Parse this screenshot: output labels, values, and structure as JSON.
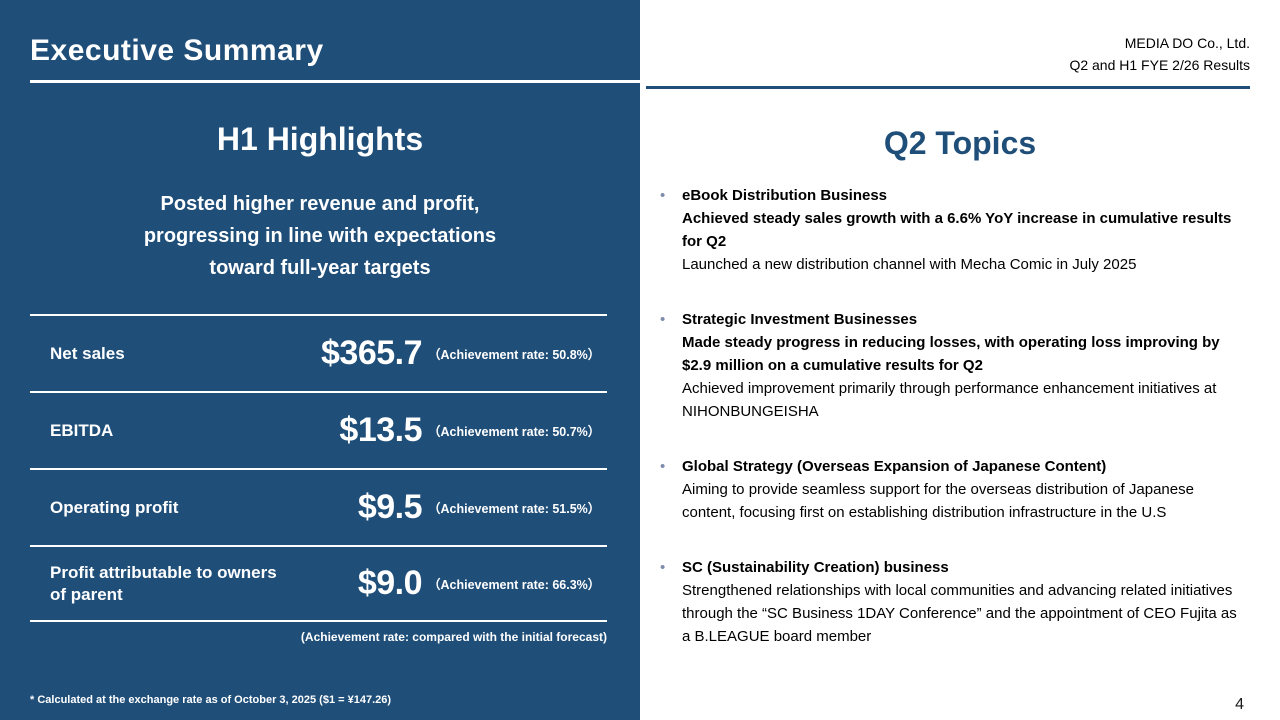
{
  "colors": {
    "panel_blue": "#1f4e79",
    "accent_blue": "#1f4e79",
    "bullet_gray_blue": "#7d8caa",
    "left_text": "#ffffff",
    "right_text": "#000000"
  },
  "left": {
    "title": "Executive Summary",
    "heading": "H1 Highlights",
    "summary_lines": [
      "Posted higher revenue and profit,",
      "progressing in line with expectations",
      "toward full-year targets"
    ],
    "metrics": [
      {
        "label": "Net sales",
        "value": "$365.7",
        "rate": "（Achievement rate: 50.8%）"
      },
      {
        "label": "EBITDA",
        "value": "$13.5",
        "rate": "（Achievement rate: 50.7%）"
      },
      {
        "label": "Operating profit",
        "value": "$9.5",
        "rate": "（Achievement rate: 51.5%）"
      },
      {
        "label": "Profit attributable to owners of parent",
        "value": "$9.0",
        "rate": "（Achievement rate: 66.3%）"
      }
    ],
    "rate_note": "(Achievement rate: compared with the initial forecast)",
    "footnote": "* Calculated at the exchange rate as of October 3, 2025 ($1 = ¥147.26)"
  },
  "right": {
    "header": {
      "company": "MEDIA DO Co., Ltd.",
      "subtitle": "Q2 and H1 FYE 2/26 Results"
    },
    "heading": "Q2 Topics",
    "topics": [
      {
        "title": "eBook Distribution Business",
        "bold_text": "Achieved steady sales growth with a 6.6% YoY increase in cumulative results for Q2",
        "text": "Launched a new distribution channel with Mecha Comic in July 2025"
      },
      {
        "title": "Strategic Investment Businesses",
        "bold_text": "Made steady progress in reducing losses, with operating loss improving by $2.9 million on a cumulative results for Q2",
        "text": "Achieved improvement primarily through performance enhancement initiatives at NIHONBUNGEISHA"
      },
      {
        "title": "Global Strategy (Overseas Expansion of Japanese Content)",
        "text": "Aiming to provide seamless support for the overseas distribution of Japanese content, focusing first on establishing distribution infrastructure in the U.S"
      },
      {
        "title": "SC (Sustainability Creation) business",
        "text": "Strengthened relationships with local communities and advancing related initiatives through the “SC Business 1DAY Conference” and the appointment of CEO Fujita as a B.LEAGUE board member"
      }
    ],
    "page_number": "4"
  }
}
